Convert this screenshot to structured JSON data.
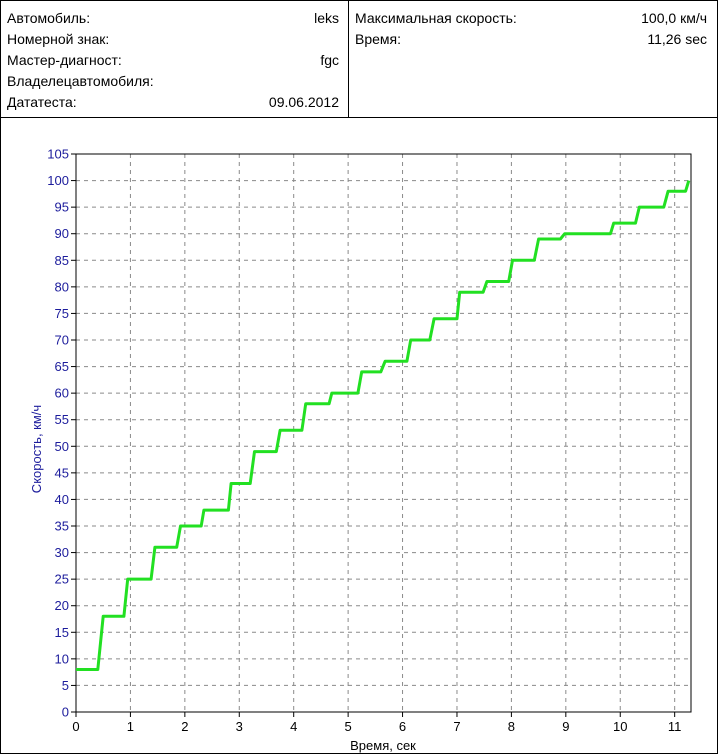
{
  "info": {
    "left": [
      {
        "label": "Автомобиль:",
        "value": "leks"
      },
      {
        "label": "Номерной знак:",
        "value": ""
      },
      {
        "label": "Мастер-диагност:",
        "value": "fgc"
      },
      {
        "label": "Владелецавтомобиля:",
        "value": ""
      },
      {
        "label": "Дататеста:",
        "value": "09.06.2012"
      }
    ],
    "right": [
      {
        "label": "Максимальная скорость:",
        "value": "100,0 км/ч"
      },
      {
        "label": "Время:",
        "value": "11,26 sec"
      }
    ]
  },
  "chart_data": {
    "type": "line",
    "xlabel": "Время, сек",
    "ylabel": "Скорость, км/ч",
    "xlim": [
      0,
      11.3
    ],
    "ylim": [
      0,
      105
    ],
    "xticks": [
      0,
      1,
      2,
      3,
      4,
      5,
      6,
      7,
      8,
      9,
      10,
      11
    ],
    "yticks": [
      0,
      5,
      10,
      15,
      20,
      25,
      30,
      35,
      40,
      45,
      50,
      55,
      60,
      65,
      70,
      75,
      80,
      85,
      90,
      95,
      100,
      105
    ],
    "grid": true,
    "series": [
      {
        "color": "#22e022",
        "points": [
          [
            0,
            8
          ],
          [
            0.4,
            8
          ],
          [
            0.5,
            18
          ],
          [
            0.88,
            18
          ],
          [
            0.95,
            25
          ],
          [
            1.38,
            25
          ],
          [
            1.45,
            31
          ],
          [
            1.85,
            31
          ],
          [
            1.92,
            35
          ],
          [
            2.3,
            35
          ],
          [
            2.35,
            38
          ],
          [
            2.8,
            38
          ],
          [
            2.85,
            43
          ],
          [
            3.2,
            43
          ],
          [
            3.28,
            49
          ],
          [
            3.68,
            49
          ],
          [
            3.75,
            53
          ],
          [
            4.15,
            53
          ],
          [
            4.22,
            58
          ],
          [
            4.65,
            58
          ],
          [
            4.7,
            60
          ],
          [
            5.18,
            60
          ],
          [
            5.25,
            64
          ],
          [
            5.6,
            64
          ],
          [
            5.68,
            66
          ],
          [
            6.08,
            66
          ],
          [
            6.15,
            70
          ],
          [
            6.5,
            70
          ],
          [
            6.58,
            74
          ],
          [
            7.0,
            74
          ],
          [
            7.05,
            79
          ],
          [
            7.48,
            79
          ],
          [
            7.55,
            81
          ],
          [
            7.95,
            81
          ],
          [
            8.02,
            85
          ],
          [
            8.42,
            85
          ],
          [
            8.5,
            89
          ],
          [
            8.9,
            89
          ],
          [
            8.98,
            90
          ],
          [
            9.82,
            90
          ],
          [
            9.88,
            92
          ],
          [
            10.28,
            92
          ],
          [
            10.35,
            95
          ],
          [
            10.8,
            95
          ],
          [
            10.88,
            98
          ],
          [
            11.2,
            98
          ],
          [
            11.26,
            100
          ]
        ]
      }
    ]
  }
}
